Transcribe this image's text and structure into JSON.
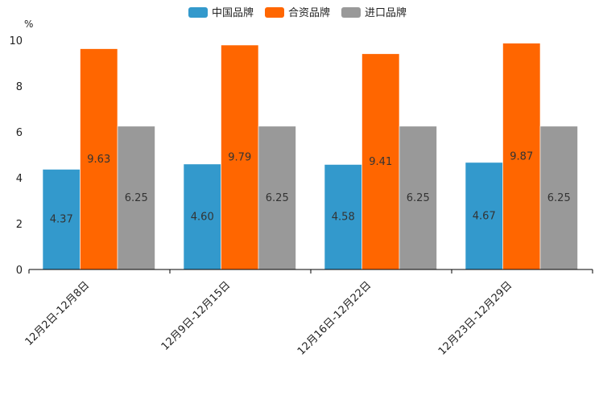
{
  "chart_data": {
    "type": "bar",
    "title": "",
    "xlabel": "",
    "ylabel": "%",
    "ylim": [
      0,
      10
    ],
    "yticks": [
      "0",
      "2",
      "4",
      "6",
      "8",
      "10"
    ],
    "grid": false,
    "legend_position": "top-center",
    "categories": [
      "12月2日-12月8日",
      "12月9日-12月15日",
      "12月16日-12月22日",
      "12月23日-12月29日"
    ],
    "series": [
      {
        "name": "中国品牌",
        "color": "#3399cc",
        "values": [
          4.37,
          4.6,
          4.58,
          4.67
        ],
        "labels": [
          "4.37",
          "4.60",
          "4.58",
          "4.67"
        ]
      },
      {
        "name": "合资品牌",
        "color": "#ff6600",
        "values": [
          9.63,
          9.79,
          9.41,
          9.87
        ],
        "labels": [
          "9.63",
          "9.79",
          "9.41",
          "9.87"
        ]
      },
      {
        "name": "进口品牌",
        "color": "#999999",
        "values": [
          6.25,
          6.25,
          6.25,
          6.25
        ],
        "labels": [
          "6.25",
          "6.25",
          "6.25",
          "6.25"
        ]
      }
    ]
  }
}
